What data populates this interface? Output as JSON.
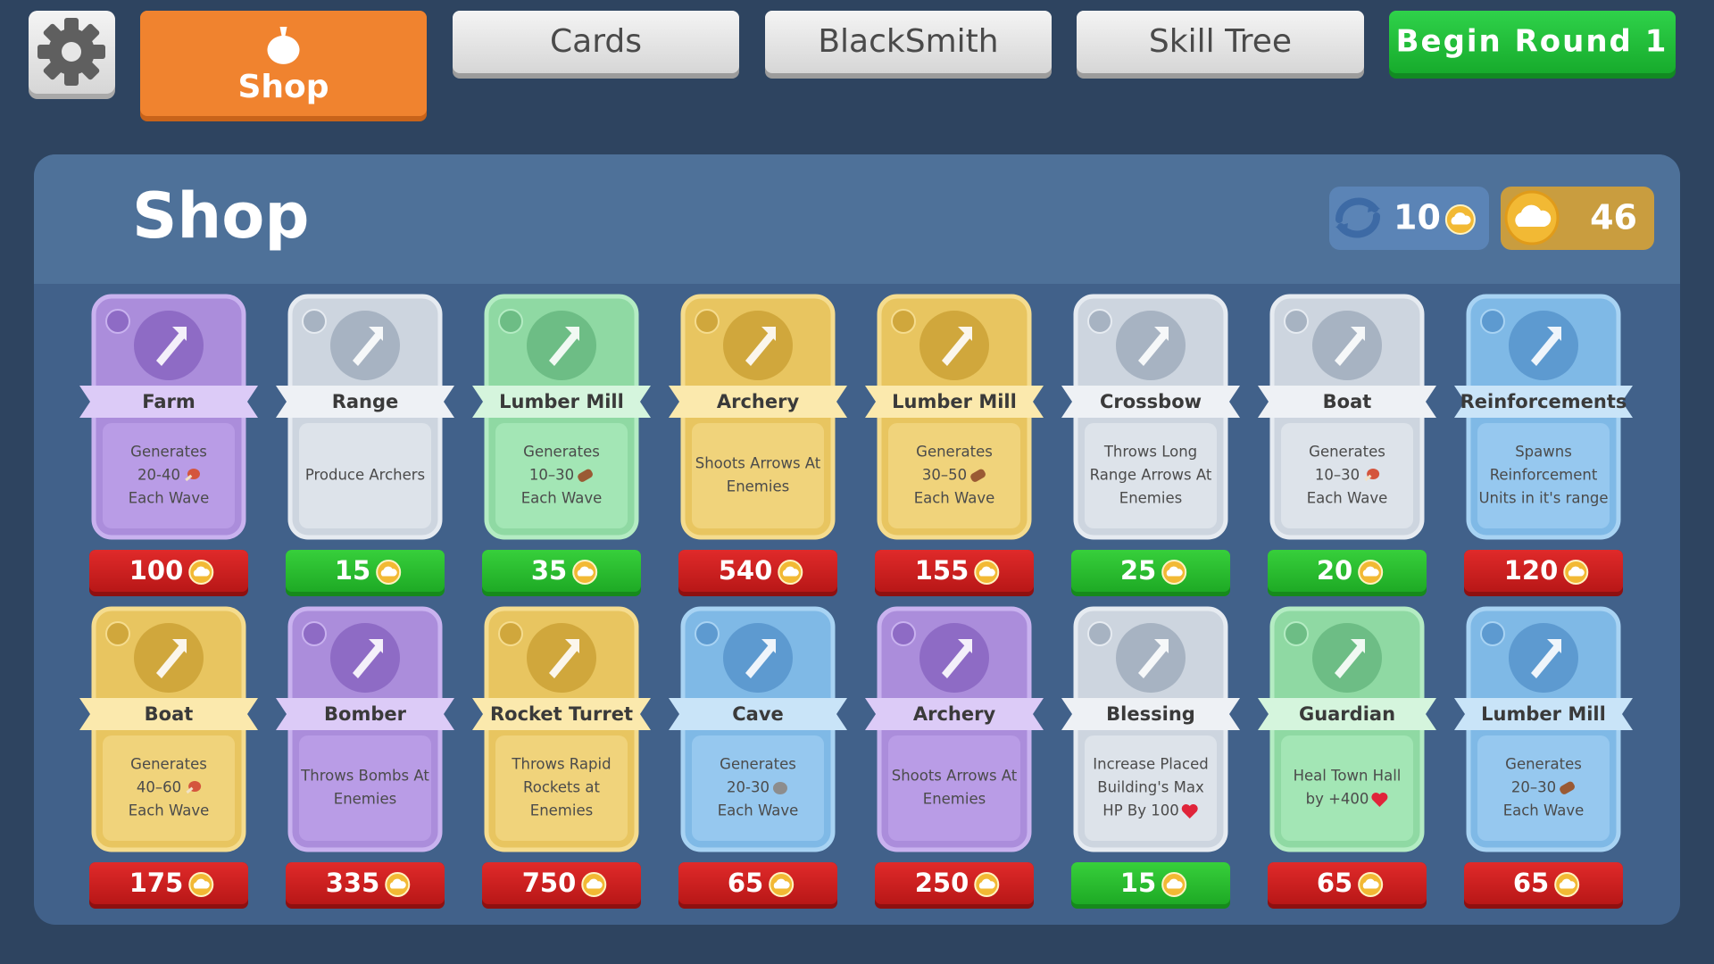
{
  "top_tabs": [
    "Shop",
    "Cards",
    "BlackSmith",
    "Skill Tree"
  ],
  "begin_button": "Begin Round 1",
  "shop": {
    "title": "Shop",
    "reroll_cost": 10,
    "coins": 46,
    "cards": [
      {
        "name": "Farm",
        "color": "purple",
        "desc": [
          "Generates",
          "20-40",
          "Each Wave"
        ],
        "resource_icon": "meat",
        "price": 100,
        "price_color": "red"
      },
      {
        "name": "Range",
        "color": "grey",
        "desc": [
          "Produce Archers"
        ],
        "price": 15,
        "price_color": "green"
      },
      {
        "name": "Lumber Mill",
        "color": "green",
        "desc": [
          "Generates",
          "10–30",
          "Each Wave"
        ],
        "resource_icon": "wood",
        "price": 35,
        "price_color": "green"
      },
      {
        "name": "Archery",
        "color": "yellow",
        "desc": [
          "Shoots Arrows At",
          "Enemies"
        ],
        "price": 540,
        "price_color": "red"
      },
      {
        "name": "Lumber Mill",
        "color": "yellow",
        "desc": [
          "Generates",
          "30–50",
          "Each Wave"
        ],
        "resource_icon": "wood",
        "price": 155,
        "price_color": "red"
      },
      {
        "name": "Crossbow",
        "color": "grey",
        "desc": [
          "Throws Long",
          "Range Arrows At",
          "Enemies"
        ],
        "price": 25,
        "price_color": "green"
      },
      {
        "name": "Boat",
        "color": "grey",
        "desc": [
          "Generates",
          "10–30",
          "Each Wave"
        ],
        "resource_icon": "meat",
        "price": 20,
        "price_color": "green"
      },
      {
        "name": "Reinforcements",
        "color": "blue",
        "desc": [
          "Spawns",
          "Reinforcement",
          "Units in it's range"
        ],
        "price": 120,
        "price_color": "red"
      },
      {
        "name": "Boat",
        "color": "yellow",
        "desc": [
          "Generates",
          "40–60",
          "Each Wave"
        ],
        "resource_icon": "meat",
        "price": 175,
        "price_color": "red"
      },
      {
        "name": "Bomber",
        "color": "purple",
        "desc": [
          "Throws Bombs At",
          "Enemies"
        ],
        "price": 335,
        "price_color": "red"
      },
      {
        "name": "Rocket Turret",
        "color": "yellow",
        "desc": [
          "Throws Rapid",
          "Rockets at",
          "Enemies"
        ],
        "price": 750,
        "price_color": "red"
      },
      {
        "name": "Cave",
        "color": "blue",
        "desc": [
          "Generates",
          "20-30",
          "Each Wave"
        ],
        "resource_icon": "stone",
        "price": 65,
        "price_color": "red"
      },
      {
        "name": "Archery",
        "color": "purple",
        "desc": [
          "Shoots Arrows At",
          "Enemies"
        ],
        "price": 250,
        "price_color": "red"
      },
      {
        "name": "Blessing",
        "color": "grey",
        "desc": [
          "Increase Placed",
          "Building's Max",
          "HP By 100"
        ],
        "resource_icon": "heart",
        "price": 15,
        "price_color": "green"
      },
      {
        "name": "Guardian",
        "color": "green",
        "desc": [
          "Heal Town Hall",
          "by +400"
        ],
        "resource_icon": "heart",
        "price": 65,
        "price_color": "red"
      },
      {
        "name": "Lumber Mill",
        "color": "blue",
        "desc": [
          "Generates",
          "20–30",
          "Each Wave"
        ],
        "resource_icon": "wood",
        "price": 65,
        "price_color": "red"
      }
    ]
  }
}
